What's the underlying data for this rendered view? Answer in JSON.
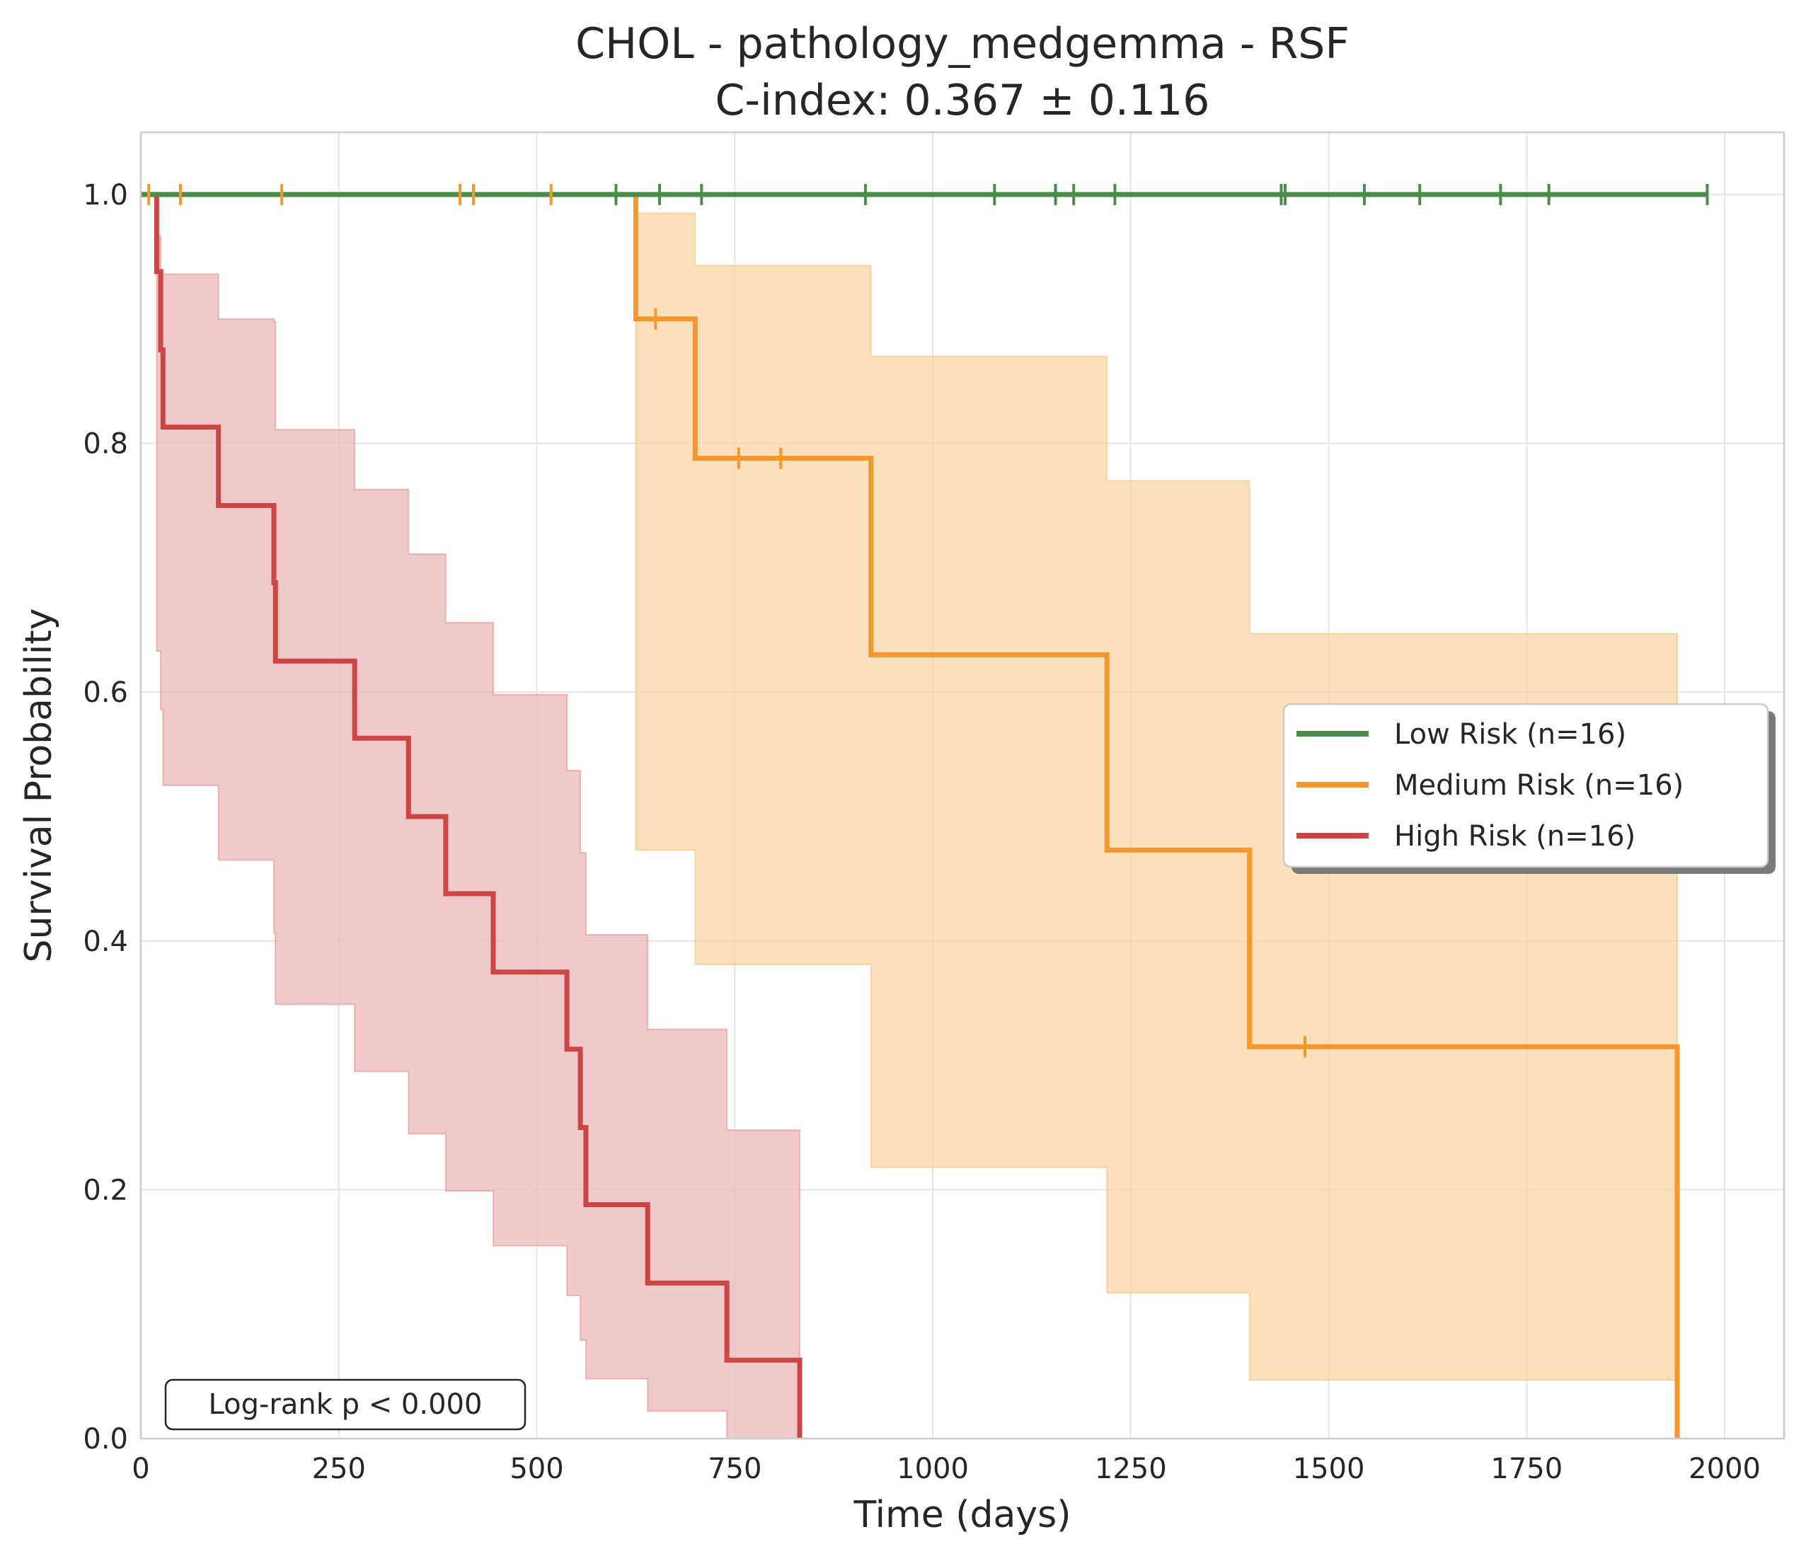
{
  "chart_data": {
    "type": "line",
    "subtype": "kaplan-meier step curves with confidence bands",
    "title": "CHOL - pathology_medgemma - RSF",
    "subtitle": "C-index: 0.367 ± 0.116",
    "xlabel": "Time (days)",
    "ylabel": "Survival Probability",
    "xlim": [
      0,
      2075
    ],
    "ylim": [
      0,
      1.05
    ],
    "xticks": [
      0,
      250,
      500,
      750,
      1000,
      1250,
      1500,
      1750,
      2000
    ],
    "xtick_labels": [
      "0",
      "250",
      "500",
      "750",
      "1000",
      "1250",
      "1500",
      "1750",
      "2000"
    ],
    "yticks": [
      0.0,
      0.2,
      0.4,
      0.6,
      0.8,
      1.0
    ],
    "ytick_labels": [
      "0.0",
      "0.2",
      "0.4",
      "0.6",
      "0.8",
      "1.0"
    ],
    "grid": true,
    "legend_position": "center-right",
    "annotation": "Log-rank p < 0.000",
    "series": [
      {
        "name": "Low Risk (n=16)",
        "color": "#4c8c4a",
        "band_color": "#4c8c4a",
        "steps": [
          [
            0,
            1.0
          ],
          [
            1978,
            1.0
          ]
        ],
        "ci_lower": [
          [
            0,
            1.0
          ],
          [
            1978,
            1.0
          ]
        ],
        "ci_upper": [
          [
            0,
            1.0
          ],
          [
            1978,
            1.0
          ]
        ],
        "censored": [
          [
            600,
            1.0
          ],
          [
            655,
            1.0
          ],
          [
            708,
            1.0
          ],
          [
            915,
            1.0
          ],
          [
            1078,
            1.0
          ],
          [
            1155,
            1.0
          ],
          [
            1178,
            1.0
          ],
          [
            1230,
            1.0
          ],
          [
            1440,
            1.0
          ],
          [
            1445,
            1.0
          ],
          [
            1545,
            1.0
          ],
          [
            1615,
            1.0
          ],
          [
            1717,
            1.0
          ],
          [
            1778,
            1.0
          ],
          [
            1978,
            1.0
          ]
        ]
      },
      {
        "name": "Medium Risk (n=16)",
        "color": "#f5972d",
        "band_color": "#f9d39f",
        "steps": [
          [
            0,
            1.0
          ],
          [
            625,
            0.9
          ],
          [
            700,
            0.788
          ],
          [
            922,
            0.63
          ],
          [
            1220,
            0.473
          ],
          [
            1400,
            0.315
          ],
          [
            1940,
            0.0
          ]
        ],
        "ci_lower": [
          [
            0,
            1.0
          ],
          [
            625,
            0.473
          ],
          [
            700,
            0.381
          ],
          [
            922,
            0.218
          ],
          [
            1220,
            0.117
          ],
          [
            1400,
            0.047
          ],
          [
            1940,
            0.047
          ]
        ],
        "ci_upper": [
          [
            0,
            1.0
          ],
          [
            625,
            0.985
          ],
          [
            700,
            0.943
          ],
          [
            922,
            0.87
          ],
          [
            1220,
            0.77
          ],
          [
            1400,
            0.647
          ],
          [
            1940,
            0.647
          ]
        ],
        "censored": [
          [
            10,
            1.0
          ],
          [
            50,
            1.0
          ],
          [
            178,
            1.0
          ],
          [
            403,
            1.0
          ],
          [
            420,
            1.0
          ],
          [
            518,
            1.0
          ],
          [
            650,
            0.9
          ],
          [
            755,
            0.788
          ],
          [
            808,
            0.788
          ],
          [
            1470,
            0.315
          ]
        ]
      },
      {
        "name": "High Risk (n=16)",
        "color": "#cc4646",
        "band_color": "#e9b3b5",
        "steps": [
          [
            0,
            1.0
          ],
          [
            20,
            0.938
          ],
          [
            25,
            0.875
          ],
          [
            28,
            0.813
          ],
          [
            98,
            0.75
          ],
          [
            168,
            0.688
          ],
          [
            170,
            0.625
          ],
          [
            270,
            0.563
          ],
          [
            338,
            0.5
          ],
          [
            385,
            0.438
          ],
          [
            445,
            0.375
          ],
          [
            538,
            0.313
          ],
          [
            555,
            0.25
          ],
          [
            562,
            0.188
          ],
          [
            640,
            0.125
          ],
          [
            740,
            0.063
          ],
          [
            832,
            0.0
          ]
        ],
        "ci_lower": [
          [
            0,
            1.0
          ],
          [
            20,
            0.633
          ],
          [
            25,
            0.586
          ],
          [
            28,
            0.525
          ],
          [
            98,
            0.465
          ],
          [
            168,
            0.406
          ],
          [
            170,
            0.349
          ],
          [
            270,
            0.295
          ],
          [
            338,
            0.245
          ],
          [
            385,
            0.199
          ],
          [
            445,
            0.155
          ],
          [
            538,
            0.115
          ],
          [
            555,
            0.079
          ],
          [
            562,
            0.048
          ],
          [
            640,
            0.022
          ],
          [
            740,
            0.0
          ],
          [
            832,
            0.0
          ]
        ],
        "ci_upper": [
          [
            0,
            1.0
          ],
          [
            20,
            0.967
          ],
          [
            25,
            0.94
          ],
          [
            28,
            0.936
          ],
          [
            98,
            0.9
          ],
          [
            168,
            0.898
          ],
          [
            170,
            0.811
          ],
          [
            270,
            0.763
          ],
          [
            338,
            0.711
          ],
          [
            385,
            0.656
          ],
          [
            445,
            0.598
          ],
          [
            538,
            0.537
          ],
          [
            555,
            0.471
          ],
          [
            562,
            0.405
          ],
          [
            640,
            0.329
          ],
          [
            740,
            0.248
          ],
          [
            832,
            0.248
          ]
        ],
        "censored": []
      }
    ]
  }
}
